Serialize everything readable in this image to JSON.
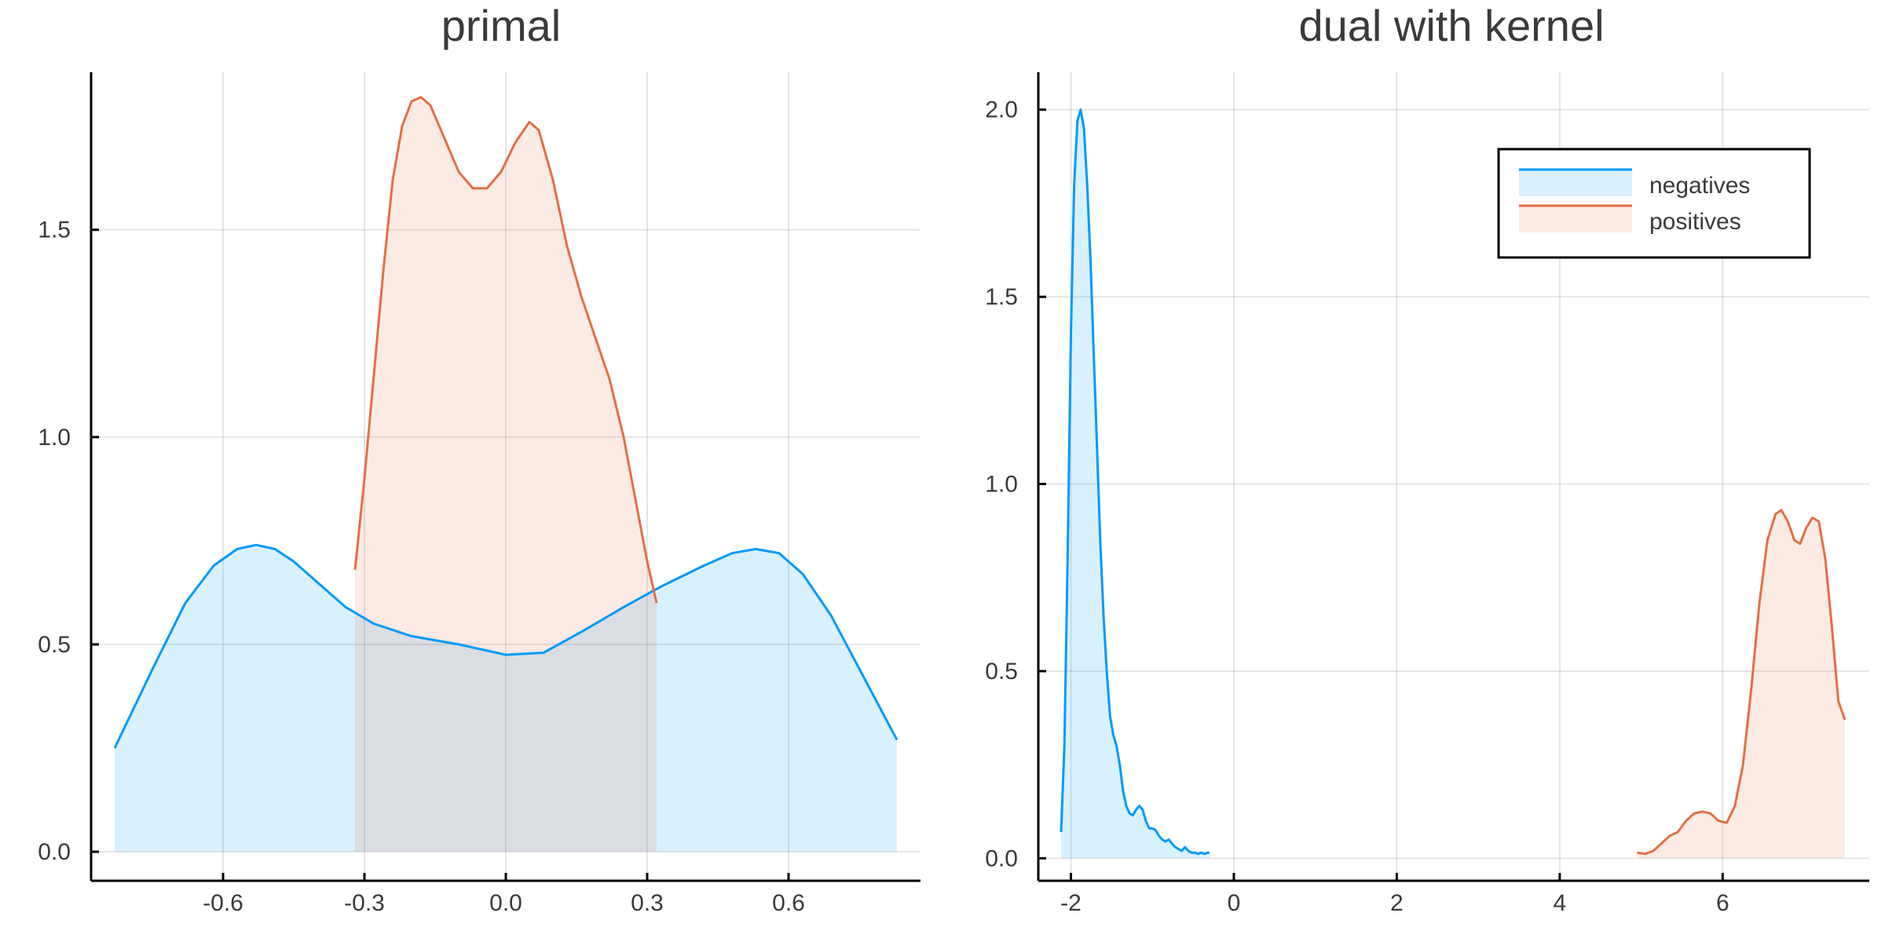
{
  "chart_data": [
    {
      "type": "area",
      "title": "primal",
      "xlabel": "",
      "ylabel": "",
      "xlim": [
        -0.88,
        0.88
      ],
      "ylim": [
        -0.07,
        1.88
      ],
      "xticks": [
        -0.6,
        -0.3,
        0.0,
        0.3,
        0.6
      ],
      "xtick_labels": [
        "-0.6",
        "-0.3",
        "0.0",
        "0.3",
        "0.6"
      ],
      "yticks": [
        0.0,
        0.5,
        1.0,
        1.5
      ],
      "ytick_labels": [
        "0.0",
        "0.5",
        "1.0",
        "1.5"
      ],
      "grid": true,
      "series": [
        {
          "name": "negatives",
          "color": "#009af9",
          "fill": "#d8eefb",
          "x": [
            -0.83,
            -0.75,
            -0.68,
            -0.62,
            -0.57,
            -0.53,
            -0.49,
            -0.45,
            -0.4,
            -0.34,
            -0.28,
            -0.2,
            -0.1,
            0.0,
            0.08,
            0.16,
            0.25,
            0.33,
            0.42,
            0.48,
            0.53,
            0.58,
            0.63,
            0.69,
            0.76,
            0.83
          ],
          "y": [
            0.25,
            0.44,
            0.6,
            0.69,
            0.73,
            0.74,
            0.73,
            0.7,
            0.65,
            0.59,
            0.55,
            0.52,
            0.5,
            0.475,
            0.48,
            0.53,
            0.59,
            0.64,
            0.69,
            0.72,
            0.73,
            0.72,
            0.67,
            0.57,
            0.42,
            0.27
          ]
        },
        {
          "name": "positives",
          "color": "#e26f46",
          "fill": "#fbe6df",
          "x": [
            -0.32,
            -0.3,
            -0.28,
            -0.26,
            -0.24,
            -0.22,
            -0.2,
            -0.18,
            -0.16,
            -0.13,
            -0.1,
            -0.07,
            -0.04,
            -0.01,
            0.02,
            0.05,
            0.07,
            0.1,
            0.13,
            0.16,
            0.19,
            0.22,
            0.25,
            0.28,
            0.3,
            0.32
          ],
          "y": [
            0.68,
            0.9,
            1.15,
            1.4,
            1.62,
            1.75,
            1.81,
            1.82,
            1.8,
            1.72,
            1.64,
            1.6,
            1.6,
            1.64,
            1.71,
            1.76,
            1.74,
            1.62,
            1.46,
            1.34,
            1.24,
            1.14,
            1.0,
            0.82,
            0.7,
            0.6
          ]
        }
      ]
    },
    {
      "type": "area",
      "title": "dual with kernel",
      "xlabel": "",
      "ylabel": "",
      "xlim": [
        -2.4,
        7.8
      ],
      "ylim": [
        -0.06,
        2.1
      ],
      "xticks": [
        -2,
        0,
        2,
        4,
        6
      ],
      "xtick_labels": [
        "-2",
        "0",
        "2",
        "4",
        "6"
      ],
      "yticks": [
        0.0,
        0.5,
        1.0,
        1.5,
        2.0
      ],
      "ytick_labels": [
        "0.0",
        "0.5",
        "1.0",
        "1.5",
        "2.0"
      ],
      "grid": true,
      "legend": {
        "position": "top-right",
        "entries": [
          {
            "label": "negatives",
            "color": "#009af9",
            "fill": "#d8eefb"
          },
          {
            "label": "positives",
            "color": "#e26f46",
            "fill": "#fbe6df"
          }
        ]
      },
      "series": [
        {
          "name": "negatives",
          "color": "#009af9",
          "fill": "#d8eefb",
          "x": [
            -2.12,
            -2.08,
            -2.04,
            -2.0,
            -1.96,
            -1.92,
            -1.88,
            -1.84,
            -1.8,
            -1.76,
            -1.72,
            -1.68,
            -1.64,
            -1.6,
            -1.56,
            -1.52,
            -1.48,
            -1.44,
            -1.4,
            -1.36,
            -1.32,
            -1.28,
            -1.24,
            -1.2,
            -1.16,
            -1.12,
            -1.08,
            -1.04,
            -1.0,
            -0.96,
            -0.92,
            -0.88,
            -0.84,
            -0.8,
            -0.76,
            -0.72,
            -0.68,
            -0.64,
            -0.6,
            -0.56,
            -0.52,
            -0.48,
            -0.44,
            -0.4,
            -0.36,
            -0.32,
            -0.3
          ],
          "y": [
            0.07,
            0.3,
            0.8,
            1.4,
            1.8,
            1.97,
            2.0,
            1.95,
            1.8,
            1.6,
            1.35,
            1.1,
            0.85,
            0.65,
            0.5,
            0.38,
            0.33,
            0.3,
            0.25,
            0.18,
            0.14,
            0.12,
            0.115,
            0.13,
            0.14,
            0.13,
            0.1,
            0.08,
            0.08,
            0.075,
            0.06,
            0.05,
            0.045,
            0.05,
            0.04,
            0.03,
            0.025,
            0.02,
            0.03,
            0.02,
            0.015,
            0.015,
            0.012,
            0.015,
            0.012,
            0.015,
            0.015
          ]
        },
        {
          "name": "positives",
          "color": "#e26f46",
          "fill": "#fbe6df",
          "x": [
            4.95,
            5.05,
            5.15,
            5.25,
            5.35,
            5.45,
            5.55,
            5.65,
            5.75,
            5.85,
            5.95,
            6.05,
            6.15,
            6.25,
            6.35,
            6.45,
            6.55,
            6.65,
            6.72,
            6.8,
            6.88,
            6.95,
            7.02,
            7.1,
            7.18,
            7.26,
            7.34,
            7.42,
            7.5
          ],
          "y": [
            0.015,
            0.012,
            0.02,
            0.04,
            0.06,
            0.07,
            0.1,
            0.12,
            0.125,
            0.12,
            0.1,
            0.095,
            0.14,
            0.25,
            0.45,
            0.68,
            0.85,
            0.92,
            0.93,
            0.9,
            0.85,
            0.84,
            0.88,
            0.91,
            0.9,
            0.8,
            0.62,
            0.42,
            0.37
          ]
        }
      ]
    }
  ]
}
